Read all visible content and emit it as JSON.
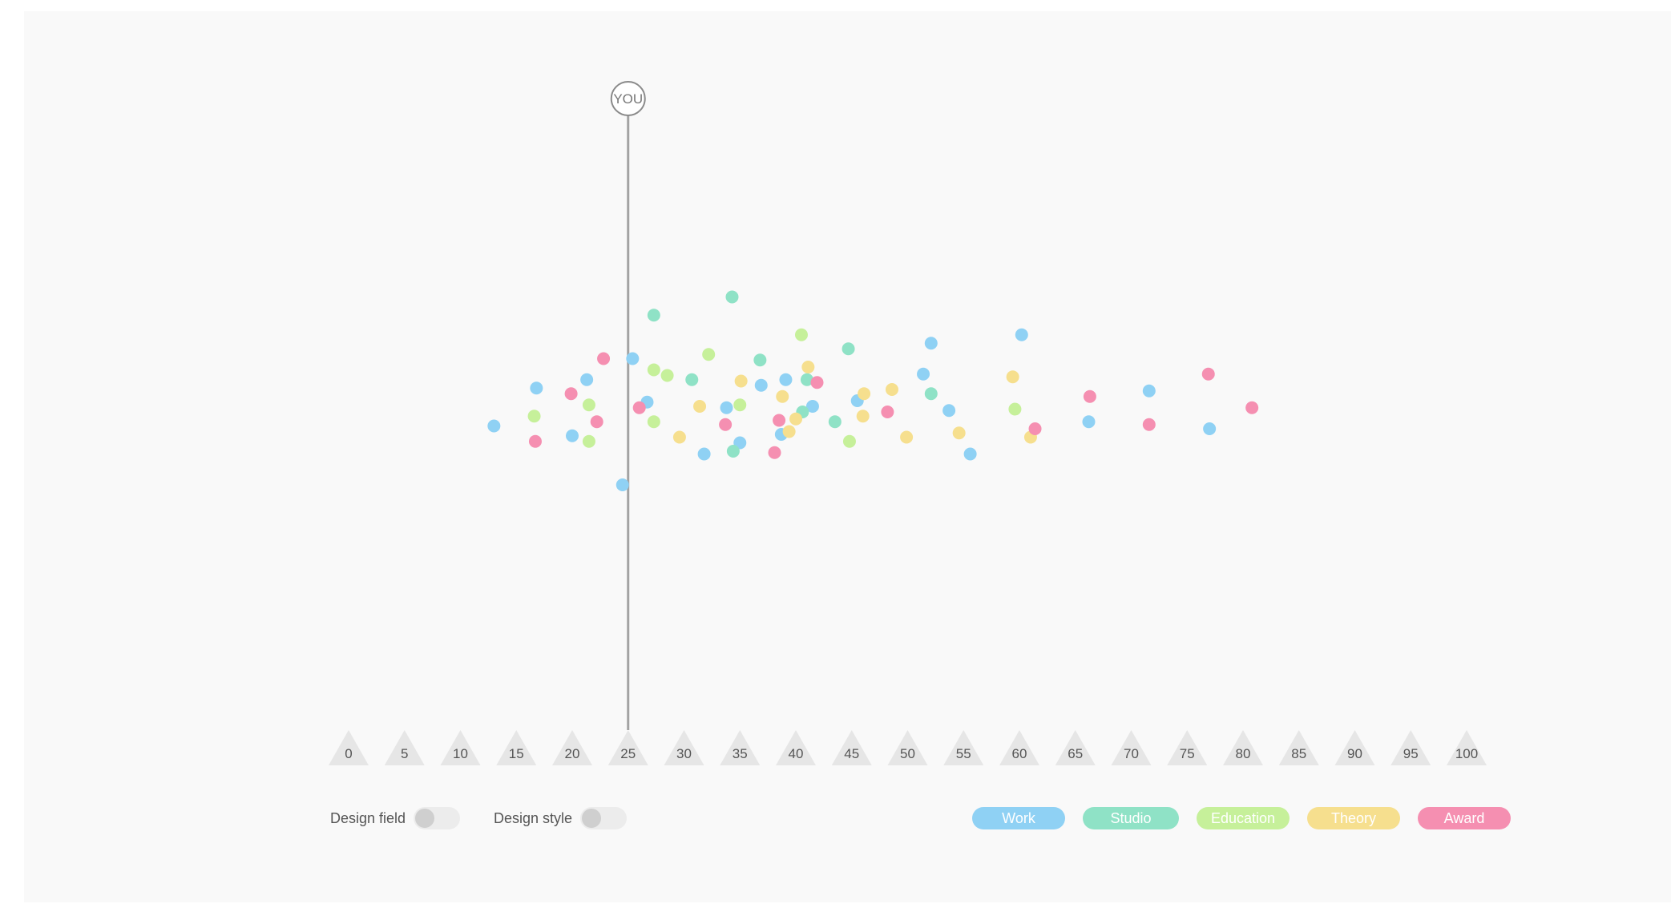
{
  "controls": {
    "design_field_label": "Design field",
    "design_style_label": "Design style"
  },
  "legend": [
    {
      "key": "work",
      "label": "Work",
      "color": "#8fd1f4"
    },
    {
      "key": "studio",
      "label": "Studio",
      "color": "#8fe2c6"
    },
    {
      "key": "education",
      "label": "Education",
      "color": "#c6f09a"
    },
    {
      "key": "theory",
      "label": "Theory",
      "color": "#f6df8e"
    },
    {
      "key": "award",
      "label": "Award",
      "color": "#f58fb1"
    }
  ],
  "you_marker": {
    "label": "YOU",
    "value": 25
  },
  "chart_data": {
    "type": "scatter",
    "title": "",
    "xlabel": "",
    "ylabel": "",
    "xlim": [
      0,
      100
    ],
    "x_ticks": [
      0,
      5,
      10,
      15,
      20,
      25,
      30,
      35,
      40,
      45,
      50,
      55,
      60,
      65,
      70,
      75,
      80,
      85,
      90,
      95,
      100
    ],
    "grid": false,
    "legend_position": "bottom-right",
    "series": [
      {
        "name": "Work",
        "color": "#8fd1f4",
        "points": [
          [
            13,
            -0.3
          ],
          [
            16.8,
            1.05
          ],
          [
            20,
            -0.65
          ],
          [
            21.3,
            1.35
          ],
          [
            24.5,
            -2.4
          ],
          [
            25.4,
            2.1
          ],
          [
            26.7,
            0.55
          ],
          [
            31.8,
            -1.3
          ],
          [
            33.8,
            0.35
          ],
          [
            35,
            -0.9
          ],
          [
            36.9,
            1.15
          ],
          [
            38.7,
            -0.6
          ],
          [
            39.1,
            1.35
          ],
          [
            41.5,
            0.4
          ],
          [
            45.5,
            0.6
          ],
          [
            51.4,
            1.55
          ],
          [
            52.1,
            2.65
          ],
          [
            53.7,
            0.25
          ],
          [
            55.6,
            -1.3
          ],
          [
            60.2,
            2.95
          ],
          [
            66.2,
            -0.15
          ],
          [
            71.6,
            0.95
          ],
          [
            77,
            -0.4
          ]
        ]
      },
      {
        "name": "Studio",
        "color": "#8fe2c6",
        "points": [
          [
            27.3,
            3.65
          ],
          [
            30.7,
            1.35
          ],
          [
            34.4,
            -1.2
          ],
          [
            34.3,
            4.3
          ],
          [
            36.8,
            2.05
          ],
          [
            40.6,
            0.2
          ],
          [
            41,
            1.35
          ],
          [
            43.5,
            -0.15
          ],
          [
            44.7,
            2.45
          ],
          [
            52.1,
            0.85
          ]
        ]
      },
      {
        "name": "Education",
        "color": "#c6f09a",
        "points": [
          [
            16.6,
            0.05
          ],
          [
            21.5,
            -0.85
          ],
          [
            21.5,
            0.45
          ],
          [
            27.3,
            -0.15
          ],
          [
            27.3,
            1.7
          ],
          [
            28.5,
            1.5
          ],
          [
            32.2,
            2.25
          ],
          [
            35,
            0.45
          ],
          [
            40.5,
            2.95
          ],
          [
            44.8,
            -0.85
          ],
          [
            59.6,
            0.3
          ]
        ]
      },
      {
        "name": "Theory",
        "color": "#f6df8e",
        "points": [
          [
            29.6,
            -0.7
          ],
          [
            31.4,
            0.4
          ],
          [
            35.1,
            1.3
          ],
          [
            38.8,
            0.75
          ],
          [
            39.4,
            -0.5
          ],
          [
            40,
            -0.05
          ],
          [
            41.1,
            1.8
          ],
          [
            46,
            0.05
          ],
          [
            46.1,
            0.85
          ],
          [
            48.6,
            1.0
          ],
          [
            49.9,
            -0.7
          ],
          [
            54.6,
            -0.55
          ],
          [
            59.4,
            1.45
          ],
          [
            61,
            -0.7
          ]
        ]
      },
      {
        "name": "Award",
        "color": "#f58fb1",
        "points": [
          [
            16.7,
            -0.85
          ],
          [
            19.9,
            0.85
          ],
          [
            22.2,
            -0.15
          ],
          [
            22.8,
            2.1
          ],
          [
            26,
            0.35
          ],
          [
            33.7,
            -0.25
          ],
          [
            38.1,
            -1.25
          ],
          [
            38.5,
            -0.1
          ],
          [
            41.9,
            1.25
          ],
          [
            48.2,
            0.2
          ],
          [
            61.4,
            -0.4
          ],
          [
            66.3,
            0.75
          ],
          [
            71.6,
            -0.25
          ],
          [
            76.9,
            1.55
          ],
          [
            80.8,
            0.35
          ]
        ]
      }
    ]
  }
}
